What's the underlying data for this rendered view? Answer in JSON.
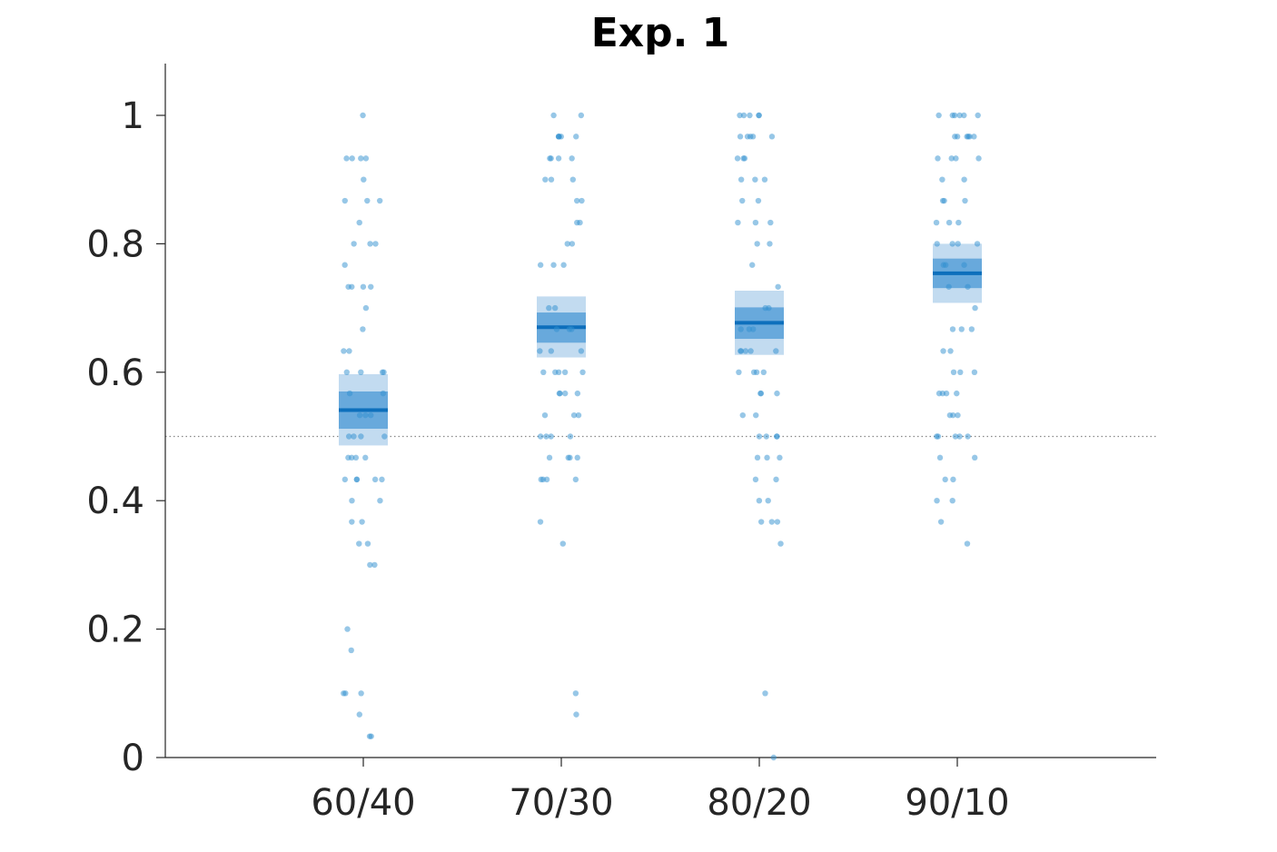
{
  "chart_data": {
    "type": "scatter",
    "title": "Exp. 1",
    "xlabel": "",
    "ylabel": "",
    "categories": [
      "60/40",
      "70/30",
      "80/20",
      "90/10"
    ],
    "ylim": [
      0,
      1.08
    ],
    "yticks": [
      0,
      0.2,
      0.4,
      0.6,
      0.8,
      1
    ],
    "ytick_labels": [
      "0",
      "0.2",
      "0.4",
      "0.6",
      "0.8",
      "1"
    ],
    "reference_line": 0.5,
    "grid": false,
    "summary": [
      {
        "category": "60/40",
        "mean": 0.541,
        "se": [
          0.512,
          0.57
        ],
        "ci95": [
          0.486,
          0.597
        ]
      },
      {
        "category": "70/30",
        "mean": 0.67,
        "se": [
          0.646,
          0.693
        ],
        "ci95": [
          0.623,
          0.718
        ]
      },
      {
        "category": "80/20",
        "mean": 0.677,
        "se": [
          0.652,
          0.701
        ],
        "ci95": [
          0.627,
          0.727
        ]
      },
      {
        "category": "90/10",
        "mean": 0.754,
        "se": [
          0.731,
          0.777
        ],
        "ci95": [
          0.708,
          0.8
        ]
      }
    ],
    "points": [
      [
        1,
        0.933,
        0.933,
        0.933,
        0.933,
        0.9,
        0.867,
        0.867,
        0.867,
        0.833,
        0.8,
        0.8,
        0.8,
        0.767,
        0.733,
        0.733,
        0.733,
        0.733,
        0.7,
        0.667,
        0.633,
        0.633,
        0.6,
        0.6,
        0.6,
        0.6,
        0.567,
        0.567,
        0.533,
        0.533,
        0.533,
        0.5,
        0.5,
        0.5,
        0.5,
        0.467,
        0.467,
        0.467,
        0.467,
        0.433,
        0.433,
        0.433,
        0.433,
        0.433,
        0.4,
        0.4,
        0.367,
        0.367,
        0.333,
        0.333,
        0.3,
        0.3,
        0.2,
        0.167,
        0.1,
        0.1,
        0.1,
        0.067,
        0.033,
        0.033
      ],
      [
        1,
        1,
        0.967,
        0.967,
        0.967,
        0.967,
        0.967,
        0.933,
        0.933,
        0.933,
        0.933,
        0.9,
        0.9,
        0.9,
        0.867,
        0.867,
        0.833,
        0.833,
        0.8,
        0.8,
        0.767,
        0.767,
        0.767,
        0.7,
        0.7,
        0.667,
        0.667,
        0.667,
        0.633,
        0.633,
        0.633,
        0.6,
        0.6,
        0.6,
        0.6,
        0.6,
        0.567,
        0.567,
        0.567,
        0.567,
        0.533,
        0.533,
        0.533,
        0.5,
        0.5,
        0.5,
        0.5,
        0.467,
        0.467,
        0.467,
        0.467,
        0.433,
        0.433,
        0.433,
        0.433,
        0.367,
        0.333,
        0.1,
        0.067
      ],
      [
        1,
        1,
        1,
        1,
        1,
        0.967,
        0.967,
        0.967,
        0.967,
        0.967,
        0.933,
        0.933,
        0.933,
        0.9,
        0.9,
        0.9,
        0.867,
        0.867,
        0.833,
        0.833,
        0.833,
        0.8,
        0.8,
        0.767,
        0.733,
        0.7,
        0.7,
        0.667,
        0.667,
        0.667,
        0.633,
        0.633,
        0.633,
        0.633,
        0.633,
        0.6,
        0.6,
        0.6,
        0.6,
        0.567,
        0.567,
        0.567,
        0.533,
        0.533,
        0.5,
        0.5,
        0.5,
        0.5,
        0.467,
        0.467,
        0.467,
        0.433,
        0.433,
        0.4,
        0.4,
        0.367,
        0.367,
        0.367,
        0.333,
        0.1,
        0
      ],
      [
        1,
        1,
        1,
        1,
        1,
        1,
        0.967,
        0.967,
        0.967,
        0.967,
        0.967,
        0.967,
        0.933,
        0.933,
        0.933,
        0.933,
        0.9,
        0.9,
        0.867,
        0.867,
        0.867,
        0.833,
        0.833,
        0.833,
        0.8,
        0.8,
        0.8,
        0.8,
        0.767,
        0.767,
        0.767,
        0.733,
        0.733,
        0.7,
        0.667,
        0.667,
        0.667,
        0.633,
        0.633,
        0.6,
        0.6,
        0.6,
        0.567,
        0.567,
        0.567,
        0.567,
        0.533,
        0.533,
        0.533,
        0.5,
        0.5,
        0.5,
        0.5,
        0.5,
        0.467,
        0.467,
        0.433,
        0.433,
        0.4,
        0.4,
        0.367,
        0.333
      ]
    ],
    "colors": {
      "points": "#2f8fd0",
      "mean_line": "#0d6fbc",
      "se_band": "#5ea3d9",
      "ci_band": "#c2dbf0",
      "reference_line": "#888888",
      "axis": "#262626",
      "text": "#262626"
    }
  }
}
